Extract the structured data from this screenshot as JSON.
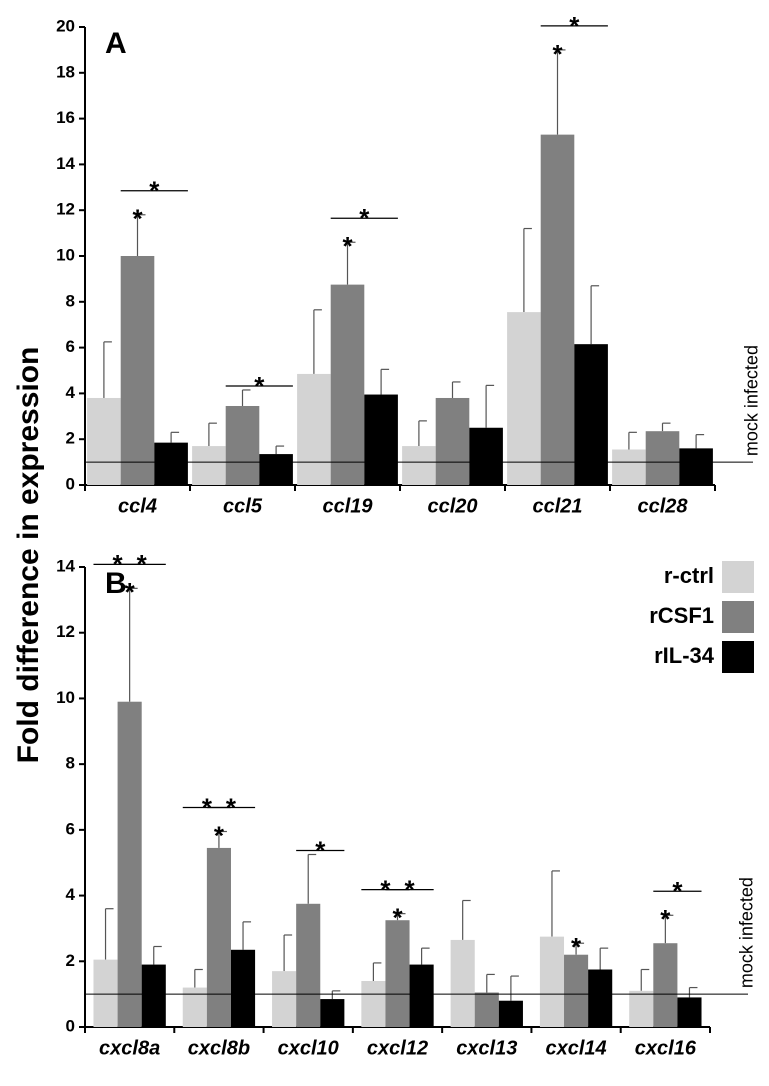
{
  "chart_data": [
    {
      "type": "bar",
      "panel_label": "A",
      "ylabel": "Fold difference in expression",
      "categories": [
        "ccl4",
        "ccl5",
        "ccl19",
        "ccl20",
        "ccl21",
        "ccl28"
      ],
      "series": [
        {
          "name": "r-ctrl",
          "color": "#d3d3d3",
          "values": [
            3.8,
            1.7,
            4.85,
            1.7,
            7.55,
            1.55
          ],
          "errors": [
            2.45,
            1.0,
            2.8,
            1.1,
            3.65,
            0.75
          ]
        },
        {
          "name": "rCSF1",
          "color": "#808080",
          "values": [
            10.0,
            3.45,
            8.75,
            3.8,
            15.3,
            2.35
          ],
          "errors": [
            1.8,
            0.7,
            1.85,
            0.7,
            3.7,
            0.35
          ]
        },
        {
          "name": "rIL-34",
          "color": "#000000",
          "values": [
            1.85,
            1.35,
            3.95,
            2.5,
            6.15,
            1.6
          ],
          "errors": [
            0.45,
            0.35,
            1.1,
            1.85,
            2.55,
            0.6
          ]
        }
      ],
      "ylim": [
        0,
        20
      ],
      "yticks": [
        0,
        2,
        4,
        6,
        8,
        10,
        12,
        14,
        16,
        18,
        20
      ],
      "reference_line": {
        "value": 1,
        "label": "mock infected"
      },
      "annotations": [
        {
          "text": "*",
          "category": "ccl4",
          "series": "rCSF1"
        },
        {
          "text": "*",
          "category": "ccl4",
          "series": [
            "rCSF1",
            "rIL-34"
          ]
        },
        {
          "text": "*",
          "category": "ccl5",
          "series": [
            "rCSF1",
            "rIL-34"
          ]
        },
        {
          "text": "*",
          "category": "ccl19",
          "series": "rCSF1"
        },
        {
          "text": "*",
          "category": "ccl19",
          "series": [
            "rCSF1",
            "rIL-34"
          ]
        },
        {
          "text": "*",
          "category": "ccl21",
          "series": "rCSF1"
        },
        {
          "text": "*",
          "category": "ccl21",
          "series": [
            "rCSF1",
            "rIL-34"
          ]
        }
      ]
    },
    {
      "type": "bar",
      "panel_label": "B",
      "legend": "upper right",
      "categories": [
        "cxcl8a",
        "cxcl8b",
        "cxcl10",
        "cxcl12",
        "cxcl13",
        "cxcl14",
        "cxcl16"
      ],
      "series": [
        {
          "name": "r-ctrl",
          "color": "#d3d3d3",
          "values": [
            2.05,
            1.2,
            1.7,
            1.4,
            2.65,
            2.75,
            1.1
          ],
          "errors": [
            1.55,
            0.55,
            1.1,
            0.55,
            1.2,
            2.0,
            0.65
          ]
        },
        {
          "name": "rCSF1",
          "color": "#808080",
          "values": [
            9.9,
            5.45,
            3.75,
            3.25,
            1.05,
            2.2,
            2.55
          ],
          "errors": [
            3.45,
            0.5,
            1.5,
            0.2,
            0.55,
            0.35,
            0.85
          ]
        },
        {
          "name": "rIL-34",
          "color": "#000000",
          "values": [
            1.9,
            2.35,
            0.85,
            1.9,
            0.8,
            1.75,
            0.9
          ],
          "errors": [
            0.55,
            0.85,
            0.25,
            0.5,
            0.75,
            0.65,
            0.3
          ]
        }
      ],
      "ylim": [
        0,
        14
      ],
      "yticks": [
        0,
        2,
        4,
        6,
        8,
        10,
        12,
        14
      ],
      "reference_line": {
        "value": 1,
        "label": "mock infected"
      },
      "annotations": [
        {
          "text": "*",
          "category": "cxcl8a",
          "series": "rCSF1"
        },
        {
          "text": "*",
          "category": "cxcl8a",
          "series": [
            "r-ctrl",
            "rCSF1"
          ]
        },
        {
          "text": "*",
          "category": "cxcl8a",
          "series": [
            "rCSF1",
            "rIL-34"
          ]
        },
        {
          "text": "*",
          "category": "cxcl8b",
          "series": "rCSF1"
        },
        {
          "text": "*",
          "category": "cxcl8b",
          "series": [
            "r-ctrl",
            "rCSF1"
          ]
        },
        {
          "text": "*",
          "category": "cxcl8b",
          "series": [
            "rCSF1",
            "rIL-34"
          ]
        },
        {
          "text": "*",
          "category": "cxcl10",
          "series": [
            "rCSF1",
            "rIL-34"
          ]
        },
        {
          "text": "*",
          "category": "cxcl12",
          "series": "rCSF1"
        },
        {
          "text": "*",
          "category": "cxcl12",
          "series": [
            "r-ctrl",
            "rCSF1"
          ]
        },
        {
          "text": "*",
          "category": "cxcl12",
          "series": [
            "rCSF1",
            "rIL-34"
          ]
        },
        {
          "text": "*",
          "category": "cxcl14",
          "series": "rCSF1"
        },
        {
          "text": "*",
          "category": "cxcl16",
          "series": "rCSF1"
        },
        {
          "text": "*",
          "category": "cxcl16",
          "series": [
            "rCSF1",
            "rIL-34"
          ]
        }
      ]
    }
  ]
}
